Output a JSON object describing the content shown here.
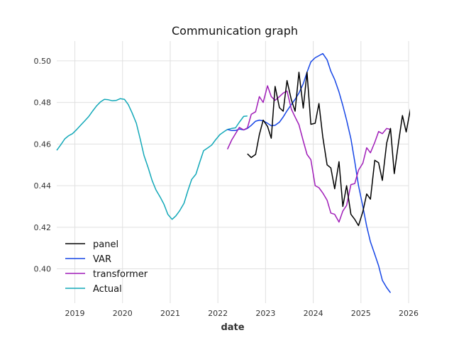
{
  "chart_data": {
    "type": "line",
    "title": "Communication graph",
    "xlabel": "date",
    "ylabel": "",
    "xlim": [
      2018.62,
      2026.0
    ],
    "ylim": [
      0.3835,
      0.5095
    ],
    "grid": true,
    "legend_position": "lower-left",
    "x_ticks": [
      {
        "value": 2019,
        "label": "2019"
      },
      {
        "value": 2020,
        "label": "2020"
      },
      {
        "value": 2021,
        "label": "2021"
      },
      {
        "value": 2022,
        "label": "2022"
      },
      {
        "value": 2023,
        "label": "2023"
      },
      {
        "value": 2024,
        "label": "2024"
      },
      {
        "value": 2025,
        "label": "2025"
      },
      {
        "value": 2026,
        "label": "2026"
      }
    ],
    "y_ticks": [
      {
        "value": 0.4,
        "label": "0.40"
      },
      {
        "value": 0.42,
        "label": "0.42"
      },
      {
        "value": 0.44,
        "label": "0.44"
      },
      {
        "value": 0.46,
        "label": "0.46"
      },
      {
        "value": 0.48,
        "label": "0.48"
      },
      {
        "value": 0.5,
        "label": "0.50"
      }
    ],
    "series": [
      {
        "name": "panel",
        "color": "#000000",
        "points": [
          [
            2022.62,
            0.4553
          ],
          [
            2022.7,
            0.4535
          ],
          [
            2022.79,
            0.455
          ],
          [
            2022.87,
            0.4645
          ],
          [
            2022.95,
            0.4715
          ],
          [
            2023.04,
            0.4685
          ],
          [
            2023.12,
            0.4628
          ],
          [
            2023.2,
            0.4877
          ],
          [
            2023.29,
            0.4775
          ],
          [
            2023.37,
            0.4758
          ],
          [
            2023.45,
            0.4905
          ],
          [
            2023.54,
            0.4813
          ],
          [
            2023.62,
            0.4758
          ],
          [
            2023.7,
            0.4945
          ],
          [
            2023.79,
            0.4773
          ],
          [
            2023.87,
            0.4945
          ],
          [
            2023.95,
            0.4695
          ],
          [
            2024.04,
            0.47
          ],
          [
            2024.12,
            0.4795
          ],
          [
            2024.2,
            0.4635
          ],
          [
            2024.29,
            0.45
          ],
          [
            2024.37,
            0.4485
          ],
          [
            2024.45,
            0.4385
          ],
          [
            2024.54,
            0.4515
          ],
          [
            2024.62,
            0.43
          ],
          [
            2024.7,
            0.44
          ],
          [
            2024.79,
            0.4262
          ],
          [
            2024.87,
            0.4238
          ],
          [
            2024.95,
            0.4208
          ],
          [
            2025.04,
            0.4275
          ],
          [
            2025.12,
            0.436
          ],
          [
            2025.2,
            0.4335
          ],
          [
            2025.29,
            0.4522
          ],
          [
            2025.37,
            0.451
          ],
          [
            2025.45,
            0.4425
          ],
          [
            2025.54,
            0.4605
          ],
          [
            2025.62,
            0.4675
          ],
          [
            2025.7,
            0.4458
          ],
          [
            2025.79,
            0.461
          ],
          [
            2025.87,
            0.4737
          ],
          [
            2025.95,
            0.4658
          ],
          [
            2026.04,
            0.477
          ]
        ]
      },
      {
        "name": "VAR",
        "color": "#1646e6",
        "points": [
          [
            2022.2,
            0.467
          ],
          [
            2022.29,
            0.4665
          ],
          [
            2022.37,
            0.4665
          ],
          [
            2022.45,
            0.4672
          ],
          [
            2022.54,
            0.4668
          ],
          [
            2022.62,
            0.4675
          ],
          [
            2022.7,
            0.469
          ],
          [
            2022.79,
            0.471
          ],
          [
            2022.87,
            0.4715
          ],
          [
            2022.95,
            0.4712
          ],
          [
            2023.04,
            0.47
          ],
          [
            2023.12,
            0.4688
          ],
          [
            2023.2,
            0.469
          ],
          [
            2023.29,
            0.4705
          ],
          [
            2023.37,
            0.473
          ],
          [
            2023.45,
            0.476
          ],
          [
            2023.54,
            0.479
          ],
          [
            2023.62,
            0.4815
          ],
          [
            2023.7,
            0.4845
          ],
          [
            2023.79,
            0.489
          ],
          [
            2023.87,
            0.4945
          ],
          [
            2023.95,
            0.4995
          ],
          [
            2024.04,
            0.5015
          ],
          [
            2024.12,
            0.5025
          ],
          [
            2024.2,
            0.5035
          ],
          [
            2024.29,
            0.5005
          ],
          [
            2024.37,
            0.495
          ],
          [
            2024.45,
            0.491
          ],
          [
            2024.54,
            0.485
          ],
          [
            2024.62,
            0.4785
          ],
          [
            2024.7,
            0.4715
          ],
          [
            2024.79,
            0.4625
          ],
          [
            2024.87,
            0.4515
          ],
          [
            2024.95,
            0.44
          ],
          [
            2025.04,
            0.43
          ],
          [
            2025.12,
            0.4205
          ],
          [
            2025.2,
            0.413
          ],
          [
            2025.29,
            0.407
          ],
          [
            2025.37,
            0.4015
          ],
          [
            2025.45,
            0.3945
          ],
          [
            2025.54,
            0.391
          ],
          [
            2025.62,
            0.3885
          ]
        ]
      },
      {
        "name": "transformer",
        "color": "#a01db8",
        "points": [
          [
            2022.2,
            0.4575
          ],
          [
            2022.29,
            0.462
          ],
          [
            2022.37,
            0.465
          ],
          [
            2022.45,
            0.468
          ],
          [
            2022.54,
            0.4668
          ],
          [
            2022.62,
            0.4678
          ],
          [
            2022.7,
            0.4743
          ],
          [
            2022.79,
            0.4755
          ],
          [
            2022.87,
            0.4828
          ],
          [
            2022.95,
            0.48
          ],
          [
            2023.04,
            0.488
          ],
          [
            2023.12,
            0.4828
          ],
          [
            2023.2,
            0.481
          ],
          [
            2023.29,
            0.4828
          ],
          [
            2023.37,
            0.4845
          ],
          [
            2023.45,
            0.4855
          ],
          [
            2023.54,
            0.4768
          ],
          [
            2023.62,
            0.473
          ],
          [
            2023.7,
            0.4693
          ],
          [
            2023.79,
            0.4615
          ],
          [
            2023.87,
            0.455
          ],
          [
            2023.95,
            0.4525
          ],
          [
            2024.04,
            0.44
          ],
          [
            2024.12,
            0.439
          ],
          [
            2024.2,
            0.4365
          ],
          [
            2024.29,
            0.433
          ],
          [
            2024.37,
            0.4268
          ],
          [
            2024.45,
            0.4262
          ],
          [
            2024.54,
            0.4225
          ],
          [
            2024.62,
            0.4278
          ],
          [
            2024.7,
            0.4305
          ],
          [
            2024.79,
            0.4405
          ],
          [
            2024.87,
            0.441
          ],
          [
            2024.95,
            0.4475
          ],
          [
            2025.04,
            0.4508
          ],
          [
            2025.12,
            0.4582
          ],
          [
            2025.2,
            0.4558
          ],
          [
            2025.29,
            0.4608
          ],
          [
            2025.37,
            0.466
          ],
          [
            2025.45,
            0.465
          ],
          [
            2025.54,
            0.4675
          ],
          [
            2025.62,
            0.467
          ]
        ]
      },
      {
        "name": "Actual",
        "color": "#12a8b8",
        "points": [
          [
            2018.62,
            0.457
          ],
          [
            2018.7,
            0.4595
          ],
          [
            2018.79,
            0.4625
          ],
          [
            2018.87,
            0.464
          ],
          [
            2018.95,
            0.465
          ],
          [
            2019.04,
            0.467
          ],
          [
            2019.12,
            0.469
          ],
          [
            2019.2,
            0.471
          ],
          [
            2019.29,
            0.4732
          ],
          [
            2019.37,
            0.4758
          ],
          [
            2019.45,
            0.4782
          ],
          [
            2019.54,
            0.4803
          ],
          [
            2019.62,
            0.4815
          ],
          [
            2019.7,
            0.4813
          ],
          [
            2019.79,
            0.4808
          ],
          [
            2019.87,
            0.481
          ],
          [
            2019.95,
            0.4818
          ],
          [
            2020.04,
            0.4815
          ],
          [
            2020.12,
            0.479
          ],
          [
            2020.2,
            0.475
          ],
          [
            2020.29,
            0.47
          ],
          [
            2020.37,
            0.4625
          ],
          [
            2020.45,
            0.4545
          ],
          [
            2020.54,
            0.4485
          ],
          [
            2020.62,
            0.4425
          ],
          [
            2020.7,
            0.438
          ],
          [
            2020.79,
            0.4345
          ],
          [
            2020.87,
            0.431
          ],
          [
            2020.95,
            0.4262
          ],
          [
            2021.04,
            0.4238
          ],
          [
            2021.12,
            0.4255
          ],
          [
            2021.2,
            0.428
          ],
          [
            2021.29,
            0.4315
          ],
          [
            2021.37,
            0.4375
          ],
          [
            2021.45,
            0.443
          ],
          [
            2021.54,
            0.4455
          ],
          [
            2021.62,
            0.4513
          ],
          [
            2021.7,
            0.4568
          ],
          [
            2021.79,
            0.4582
          ],
          [
            2021.87,
            0.4595
          ],
          [
            2021.95,
            0.462
          ],
          [
            2022.04,
            0.4645
          ],
          [
            2022.12,
            0.4658
          ],
          [
            2022.2,
            0.467
          ],
          [
            2022.29,
            0.4675
          ],
          [
            2022.37,
            0.4678
          ],
          [
            2022.45,
            0.4705
          ],
          [
            2022.54,
            0.4733
          ],
          [
            2022.62,
            0.4735
          ]
        ]
      }
    ]
  }
}
